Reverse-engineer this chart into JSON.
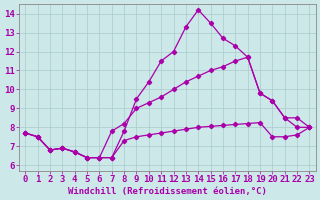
{
  "xlabel": "Windchill (Refroidissement éolien,°C)",
  "bg_color": "#cce8e8",
  "line_color": "#aa00aa",
  "xlim": [
    -0.5,
    23.5
  ],
  "ylim": [
    5.7,
    14.5
  ],
  "xticks": [
    0,
    1,
    2,
    3,
    4,
    5,
    6,
    7,
    8,
    9,
    10,
    11,
    12,
    13,
    14,
    15,
    16,
    17,
    18,
    19,
    20,
    21,
    22,
    23
  ],
  "yticks": [
    6,
    7,
    8,
    9,
    10,
    11,
    12,
    13,
    14
  ],
  "line1_x": [
    0,
    1,
    2,
    3,
    4,
    5,
    6,
    7,
    8,
    9,
    10,
    11,
    12,
    13,
    14,
    15,
    16,
    17,
    18,
    19,
    20,
    21,
    22,
    23
  ],
  "line1_y": [
    7.7,
    7.5,
    6.8,
    6.9,
    6.7,
    6.4,
    6.4,
    6.4,
    7.8,
    9.5,
    10.4,
    11.5,
    12.0,
    13.3,
    14.2,
    13.5,
    12.7,
    12.3,
    11.7,
    9.8,
    9.4,
    8.5,
    8.0,
    8.0
  ],
  "line2_x": [
    0,
    1,
    2,
    3,
    4,
    5,
    6,
    7,
    8,
    9,
    10,
    11,
    12,
    13,
    14,
    15,
    16,
    17,
    18,
    19,
    20,
    21,
    22,
    23
  ],
  "line2_y": [
    7.7,
    7.5,
    6.8,
    6.9,
    6.7,
    6.4,
    6.4,
    7.8,
    8.2,
    9.0,
    9.3,
    9.6,
    10.0,
    10.4,
    10.7,
    11.0,
    11.2,
    11.5,
    11.7,
    9.8,
    9.4,
    8.5,
    8.5,
    8.0
  ],
  "line3_x": [
    0,
    1,
    2,
    3,
    4,
    5,
    6,
    7,
    8,
    9,
    10,
    11,
    12,
    13,
    14,
    15,
    16,
    17,
    18,
    19,
    20,
    21,
    22,
    23
  ],
  "line3_y": [
    7.7,
    7.5,
    6.8,
    6.9,
    6.7,
    6.4,
    6.4,
    6.4,
    7.3,
    7.5,
    7.6,
    7.7,
    7.8,
    7.9,
    8.0,
    8.05,
    8.1,
    8.15,
    8.2,
    8.25,
    7.5,
    7.5,
    7.6,
    8.0
  ],
  "grid_color": "#aacccc",
  "xlabel_fontsize": 6.5,
  "tick_fontsize": 6.5,
  "marker": "D",
  "marker_size": 2.2,
  "linewidth": 0.9
}
